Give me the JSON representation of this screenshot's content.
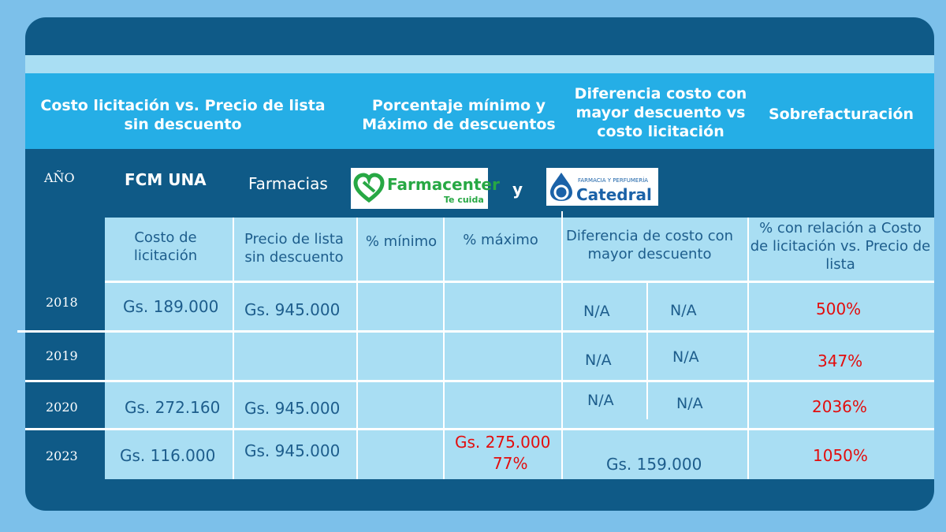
{
  "header": {
    "col1": "Costo licitación vs. Precio de lista sin descuento",
    "col2": "Porcentaje mínimo y Máximo de descuentos",
    "col3": "Diferencia costo con mayor descuento vs costo licitación",
    "col4": "Sobrefacturación"
  },
  "band": {
    "year_label": "AÑO",
    "fcm": "FCM UNA",
    "farmacias": "Farmacias",
    "y": "y",
    "farmacenter": {
      "name": "Farmacenter",
      "tagline": "Te cuida"
    },
    "catedral": {
      "top": "FARMACIA Y PERFUMERÍA",
      "name": "Catedral"
    }
  },
  "columns": {
    "costo": "Costo de licitación",
    "precio": "Precio de lista sin descuento",
    "min": "% mínimo",
    "max": "% máximo",
    "diferencia": "Diferencia de costo con mayor descuento",
    "relacion": "% con relación a Costo de licitación vs. Precio de lista"
  },
  "rows": [
    {
      "year": "2018",
      "costo": "Gs. 189.000",
      "precio": "Gs. 945.000",
      "d1": "N/A",
      "d2": "N/A",
      "sobre": "500%"
    },
    {
      "year": "2019",
      "costo": "",
      "precio": "",
      "d1": "N/A",
      "d2": "N/A",
      "sobre": "347%"
    },
    {
      "year": "2020",
      "costo": "Gs. 272.160",
      "precio": "Gs. 945.000",
      "d1": "N/A",
      "d2": "N/A",
      "sobre": "2036%"
    },
    {
      "year": "2023",
      "costo": "Gs. 116.000",
      "precio": "Gs. 945.000",
      "max1": "Gs. 275.000",
      "max2": "77%",
      "dif": "Gs. 159.000",
      "sobre": "1050%"
    }
  ],
  "colors": {
    "frame": "#0f5a87",
    "header": "#25aee6",
    "light": "#a9def3",
    "red": "#e30d0d",
    "green": "#27a844"
  }
}
